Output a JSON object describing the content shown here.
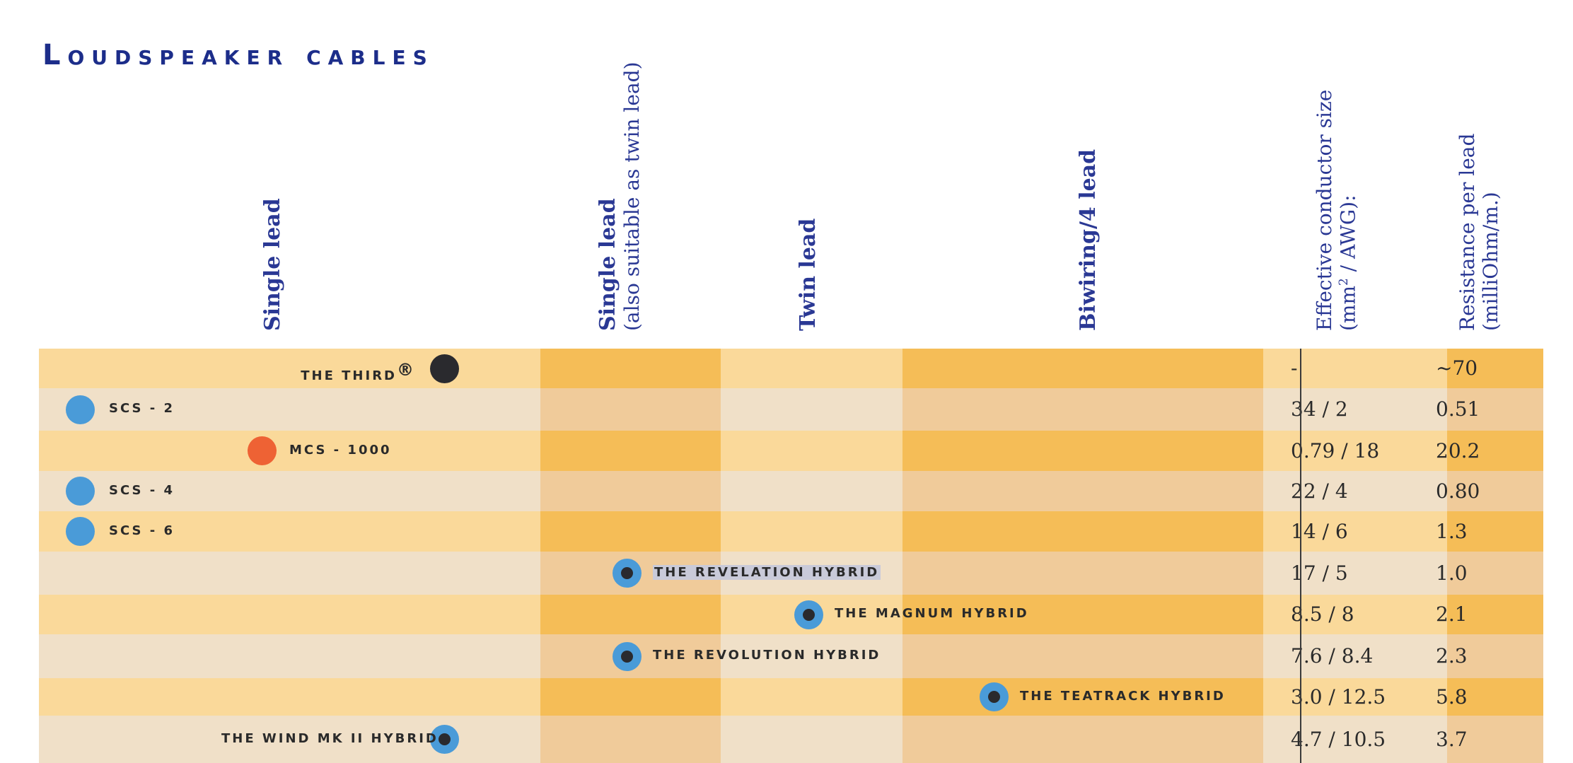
{
  "title": "Loudspeaker cables",
  "headers": {
    "single_lead": "Single lead",
    "single_twin_main": "Single lead",
    "single_twin_note": "(also suitable as twin lead)",
    "twin_lead": "Twin lead",
    "biwiring": "Biwiring/4 lead",
    "conductor_size_1": "Effective conductor size",
    "conductor_size_2_pre": "(mm",
    "conductor_size_2_sup": "2",
    "conductor_size_2_post": " / AWG):",
    "resistance_1": "Resistance per lead",
    "resistance_2": "(milliOhm/m.)"
  },
  "colors": {
    "brand_blue": "#1c2d8a",
    "dot_blue": "#4a9bd8",
    "dot_orange": "#ee6234",
    "dot_black": "#2a2a2e"
  },
  "products": [
    {
      "name": "The Third",
      "mark": "®",
      "dot": "black",
      "size": "-",
      "resistance": "~70"
    },
    {
      "name": "SCS - 2",
      "dot": "blue",
      "size": "34 / 2",
      "resistance": "0.51"
    },
    {
      "name": "MCS - 1000",
      "dot": "orange",
      "size": "0.79 / 18",
      "resistance": "20.2"
    },
    {
      "name": "SCS - 4",
      "dot": "blue",
      "size": "22 / 4",
      "resistance": "0.80"
    },
    {
      "name": "SCS - 6",
      "dot": "blue",
      "size": "14 / 6",
      "resistance": "1.3"
    },
    {
      "name": "The Revelation Hybrid",
      "dot": "hybrid",
      "size": "17 / 5",
      "resistance": "1.0"
    },
    {
      "name": "The Magnum Hybrid",
      "dot": "hybrid",
      "size": "8.5 / 8",
      "resistance": "2.1"
    },
    {
      "name": "The Revolution Hybrid",
      "dot": "hybrid",
      "size": "7.6 / 8.4",
      "resistance": "2.3"
    },
    {
      "name": "The Teatrack Hybrid",
      "dot": "hybrid",
      "size": "3.0 / 12.5",
      "resistance": "5.8"
    },
    {
      "name": "The Wind MK II Hybrid",
      "dot": "hybrid",
      "size": "4.7 / 10.5",
      "resistance": "3.7"
    }
  ]
}
